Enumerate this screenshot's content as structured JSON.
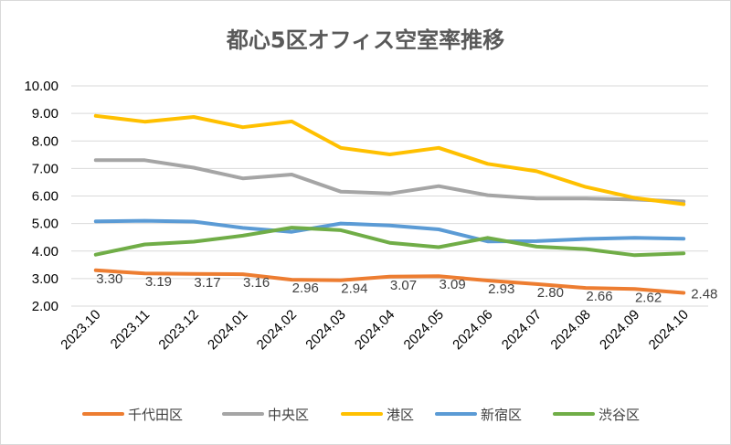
{
  "chart_data": {
    "type": "line",
    "title": "都心5区オフィス空室率推移",
    "xlabel": "",
    "ylabel": "",
    "ylim": [
      2.0,
      10.0
    ],
    "yticks": [
      "2.00",
      "3.00",
      "4.00",
      "5.00",
      "6.00",
      "7.00",
      "8.00",
      "9.00",
      "10.00"
    ],
    "grid": true,
    "legend_position": "bottom",
    "categories": [
      "2023.10",
      "2023.11",
      "2023.12",
      "2024.01",
      "2024.02",
      "2024.03",
      "2024.04",
      "2024.05",
      "2024.06",
      "2024.07",
      "2024.08",
      "2024.09",
      "2024.10"
    ],
    "series": [
      {
        "name": "千代田区",
        "color": "#ED7D31",
        "values": [
          3.3,
          3.19,
          3.17,
          3.16,
          2.96,
          2.94,
          3.07,
          3.09,
          2.93,
          2.8,
          2.66,
          2.62,
          2.48
        ],
        "data_labels": [
          "3.30",
          "3.19",
          "3.17",
          "3.16",
          "2.96",
          "2.94",
          "3.07",
          "3.09",
          "2.93",
          "2.80",
          "2.66",
          "2.62",
          "2.48"
        ]
      },
      {
        "name": "中央区",
        "color": "#A5A5A5",
        "values": [
          7.3,
          7.3,
          7.03,
          6.64,
          6.78,
          6.16,
          6.09,
          6.36,
          6.03,
          5.91,
          5.91,
          5.87,
          5.8
        ]
      },
      {
        "name": "港区",
        "color": "#FFC000",
        "values": [
          8.91,
          8.7,
          8.87,
          8.5,
          8.71,
          7.75,
          7.51,
          7.75,
          7.17,
          6.9,
          6.33,
          5.93,
          5.7
        ]
      },
      {
        "name": "新宿区",
        "color": "#5B9BD5",
        "values": [
          5.08,
          5.1,
          5.07,
          4.84,
          4.7,
          5.0,
          4.93,
          4.79,
          4.35,
          4.36,
          4.44,
          4.48,
          4.45
        ]
      },
      {
        "name": "渋谷区",
        "color": "#70AD47",
        "values": [
          3.87,
          4.24,
          4.34,
          4.56,
          4.85,
          4.76,
          4.3,
          4.14,
          4.48,
          4.16,
          4.07,
          3.85,
          3.92
        ]
      }
    ]
  }
}
